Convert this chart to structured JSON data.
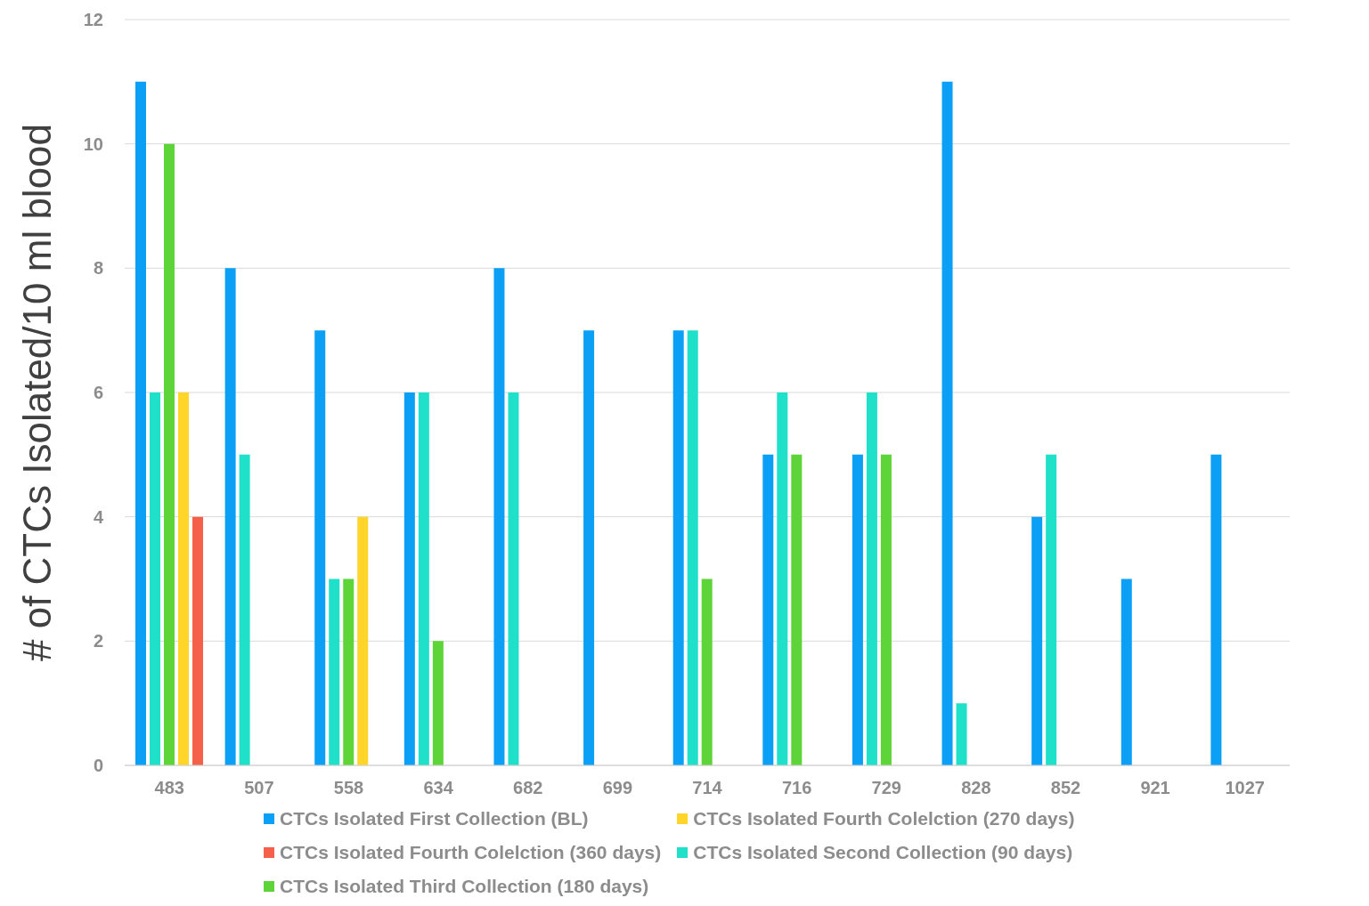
{
  "chart_data": {
    "type": "bar",
    "ylabel": "# of CTCs Isolated/10 ml blood",
    "categories": [
      "483",
      "507",
      "558",
      "634",
      "682",
      "699",
      "714",
      "716",
      "729",
      "828",
      "852",
      "921",
      "1027"
    ],
    "series": [
      {
        "name": "CTCs Isolated First Collection (BL)",
        "color": "#0ba0f5",
        "values": [
          11,
          8,
          7,
          6,
          8,
          7,
          7,
          5,
          5,
          11,
          4,
          3,
          5
        ]
      },
      {
        "name": "CTCs Isolated Second Collection (90 days)",
        "color": "#1fe0c9",
        "values": [
          6,
          5,
          3,
          6,
          6,
          null,
          7,
          6,
          6,
          1,
          5,
          null,
          null
        ]
      },
      {
        "name": "CTCs Isolated Third Collection (180 days)",
        "color": "#5dd437",
        "values": [
          10,
          null,
          3,
          2,
          null,
          null,
          3,
          5,
          5,
          null,
          null,
          null,
          null
        ]
      },
      {
        "name": "CTCs Isolated Fourth Colelction (270 days)",
        "color": "#ffd52a",
        "values": [
          6,
          null,
          4,
          null,
          null,
          null,
          null,
          null,
          null,
          null,
          null,
          null,
          null
        ]
      },
      {
        "name": "CTCs Isolated Fourth Colelction (360 days)",
        "color": "#f5604a",
        "values": [
          4,
          null,
          null,
          null,
          null,
          null,
          null,
          null,
          null,
          null,
          null,
          null,
          null
        ]
      }
    ],
    "ylim": [
      0,
      12
    ],
    "yticks": [
      0,
      2,
      4,
      6,
      8,
      10,
      12
    ],
    "grid": "y",
    "legend": "bottom"
  }
}
